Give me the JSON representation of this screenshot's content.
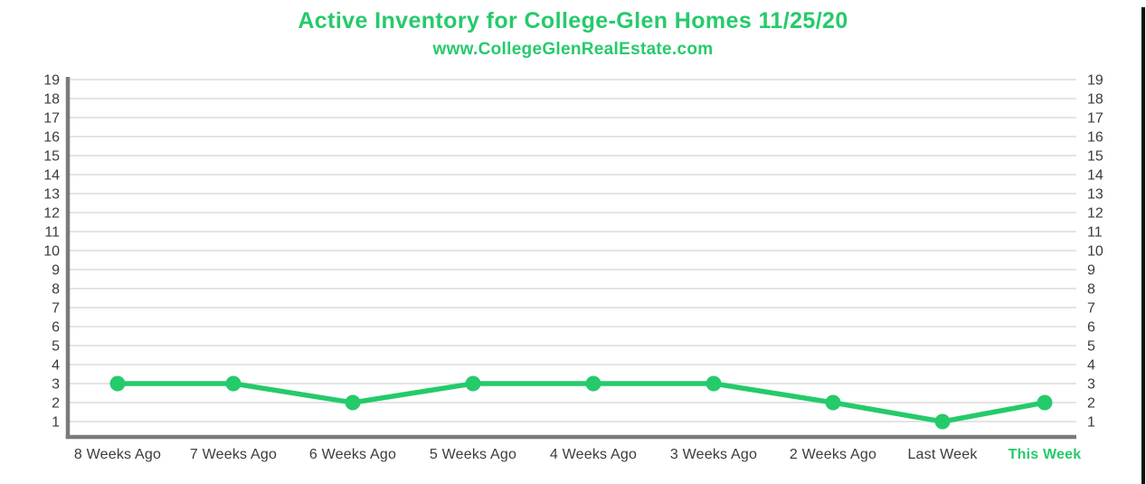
{
  "chart_data": {
    "type": "line",
    "title": "Active Inventory for College-Glen Homes 11/25/20",
    "subtitle": "www.CollegeGlenRealEstate.com",
    "series": [
      {
        "name": "Active Inventory",
        "values": [
          3,
          3,
          2,
          3,
          3,
          3,
          2,
          1,
          2
        ]
      }
    ],
    "categories": [
      "8 Weeks Ago",
      "7 Weeks Ago",
      "6 Weeks Ago",
      "5 Weeks Ago",
      "4 Weeks Ago",
      "3 Weeks Ago",
      "2 Weeks Ago",
      "Last Week",
      "This Week"
    ],
    "highlight_category": "This Week",
    "yticks": [
      1,
      2,
      3,
      4,
      5,
      6,
      7,
      8,
      9,
      10,
      11,
      12,
      13,
      14,
      15,
      16,
      17,
      18,
      19
    ],
    "ylim": [
      0,
      19
    ],
    "y_axis_sides": "both",
    "grid": true,
    "legend": "none",
    "marker": "circle"
  },
  "colors": {
    "accent_green": "#25ca6b",
    "grid_line": "#e4e4e4",
    "axis_line": "#7b7b7b",
    "tick_text": "#3b3b3b",
    "background": "#ffffff",
    "right_border": "#0e0e0e"
  }
}
